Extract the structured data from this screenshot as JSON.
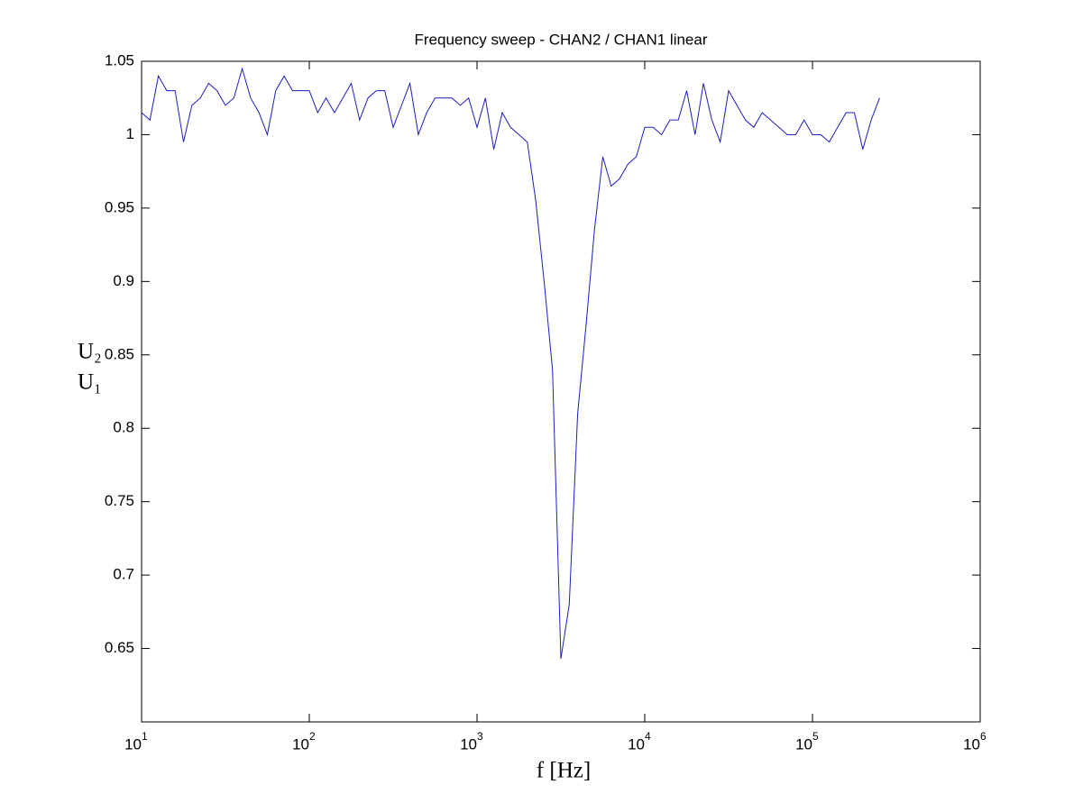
{
  "chart_data": {
    "type": "line",
    "title": "Frequency sweep - CHAN2 / CHAN1 linear",
    "xlabel": "f [Hz]",
    "ylabel": [
      "U₂",
      "U₁"
    ],
    "xscale": "log",
    "color": "#1c1cc0",
    "x": [
      10,
      11.22,
      12.59,
      14.13,
      15.85,
      17.78,
      19.95,
      22.39,
      25.12,
      28.18,
      31.62,
      35.48,
      39.81,
      44.67,
      50.12,
      56.23,
      63.1,
      70.79,
      79.43,
      89.13,
      100,
      112.2,
      125.9,
      141.3,
      158.5,
      177.8,
      199.5,
      223.9,
      251.2,
      281.8,
      316.2,
      354.8,
      398.1,
      446.7,
      501.2,
      562.3,
      631,
      707.9,
      794.3,
      891.3,
      1000,
      1122,
      1259,
      1413,
      1585,
      1778,
      1995,
      2239,
      2512,
      2818,
      3162,
      3548,
      3981,
      4467,
      5012,
      5623,
      6310,
      7079,
      7943,
      8913,
      10000,
      11220,
      12590,
      14130,
      15850,
      17780,
      19950,
      22390,
      25120,
      28180,
      31620,
      35480,
      39810,
      44670,
      50120,
      56230,
      63100,
      70790,
      79430,
      89130,
      100000,
      112200,
      125900,
      141300,
      158500,
      177800,
      199500,
      223900,
      251200
    ],
    "values": [
      1.015,
      1.01,
      1.04,
      1.03,
      1.03,
      0.995,
      1.02,
      1.025,
      1.035,
      1.03,
      1.02,
      1.025,
      1.045,
      1.025,
      1.015,
      1.0,
      1.03,
      1.04,
      1.03,
      1.03,
      1.03,
      1.015,
      1.025,
      1.015,
      1.025,
      1.035,
      1.01,
      1.025,
      1.03,
      1.03,
      1.005,
      1.02,
      1.035,
      1.0,
      1.015,
      1.025,
      1.025,
      1.025,
      1.02,
      1.025,
      1.005,
      1.025,
      0.99,
      1.015,
      1.005,
      1.0,
      0.995,
      0.955,
      0.9,
      0.84,
      0.643,
      0.68,
      0.81,
      0.87,
      0.935,
      0.985,
      0.965,
      0.97,
      0.98,
      0.985,
      1.005,
      1.005,
      1.0,
      1.01,
      1.01,
      1.03,
      1.0,
      1.035,
      1.01,
      0.995,
      1.03,
      1.02,
      1.01,
      1.005,
      1.015,
      1.01,
      1.005,
      1.0,
      1.0,
      1.01,
      1.0,
      1.0,
      0.995,
      1.005,
      1.015,
      1.015,
      0.99,
      1.01,
      1.025
    ],
    "xlim": [
      10,
      1000000
    ],
    "xticks": [
      {
        "value": 10,
        "label": "10",
        "exponent": "1"
      },
      {
        "value": 100,
        "label": "10",
        "exponent": "2"
      },
      {
        "value": 1000,
        "label": "10",
        "exponent": "3"
      },
      {
        "value": 10000,
        "label": "10",
        "exponent": "4"
      },
      {
        "value": 100000,
        "label": "10",
        "exponent": "5"
      },
      {
        "value": 1000000,
        "label": "10",
        "exponent": "6"
      }
    ],
    "ylim": [
      0.6,
      1.05
    ],
    "yticks": [
      0.65,
      0.7,
      0.75,
      0.8,
      0.85,
      0.9,
      0.95,
      1,
      1.05
    ]
  }
}
